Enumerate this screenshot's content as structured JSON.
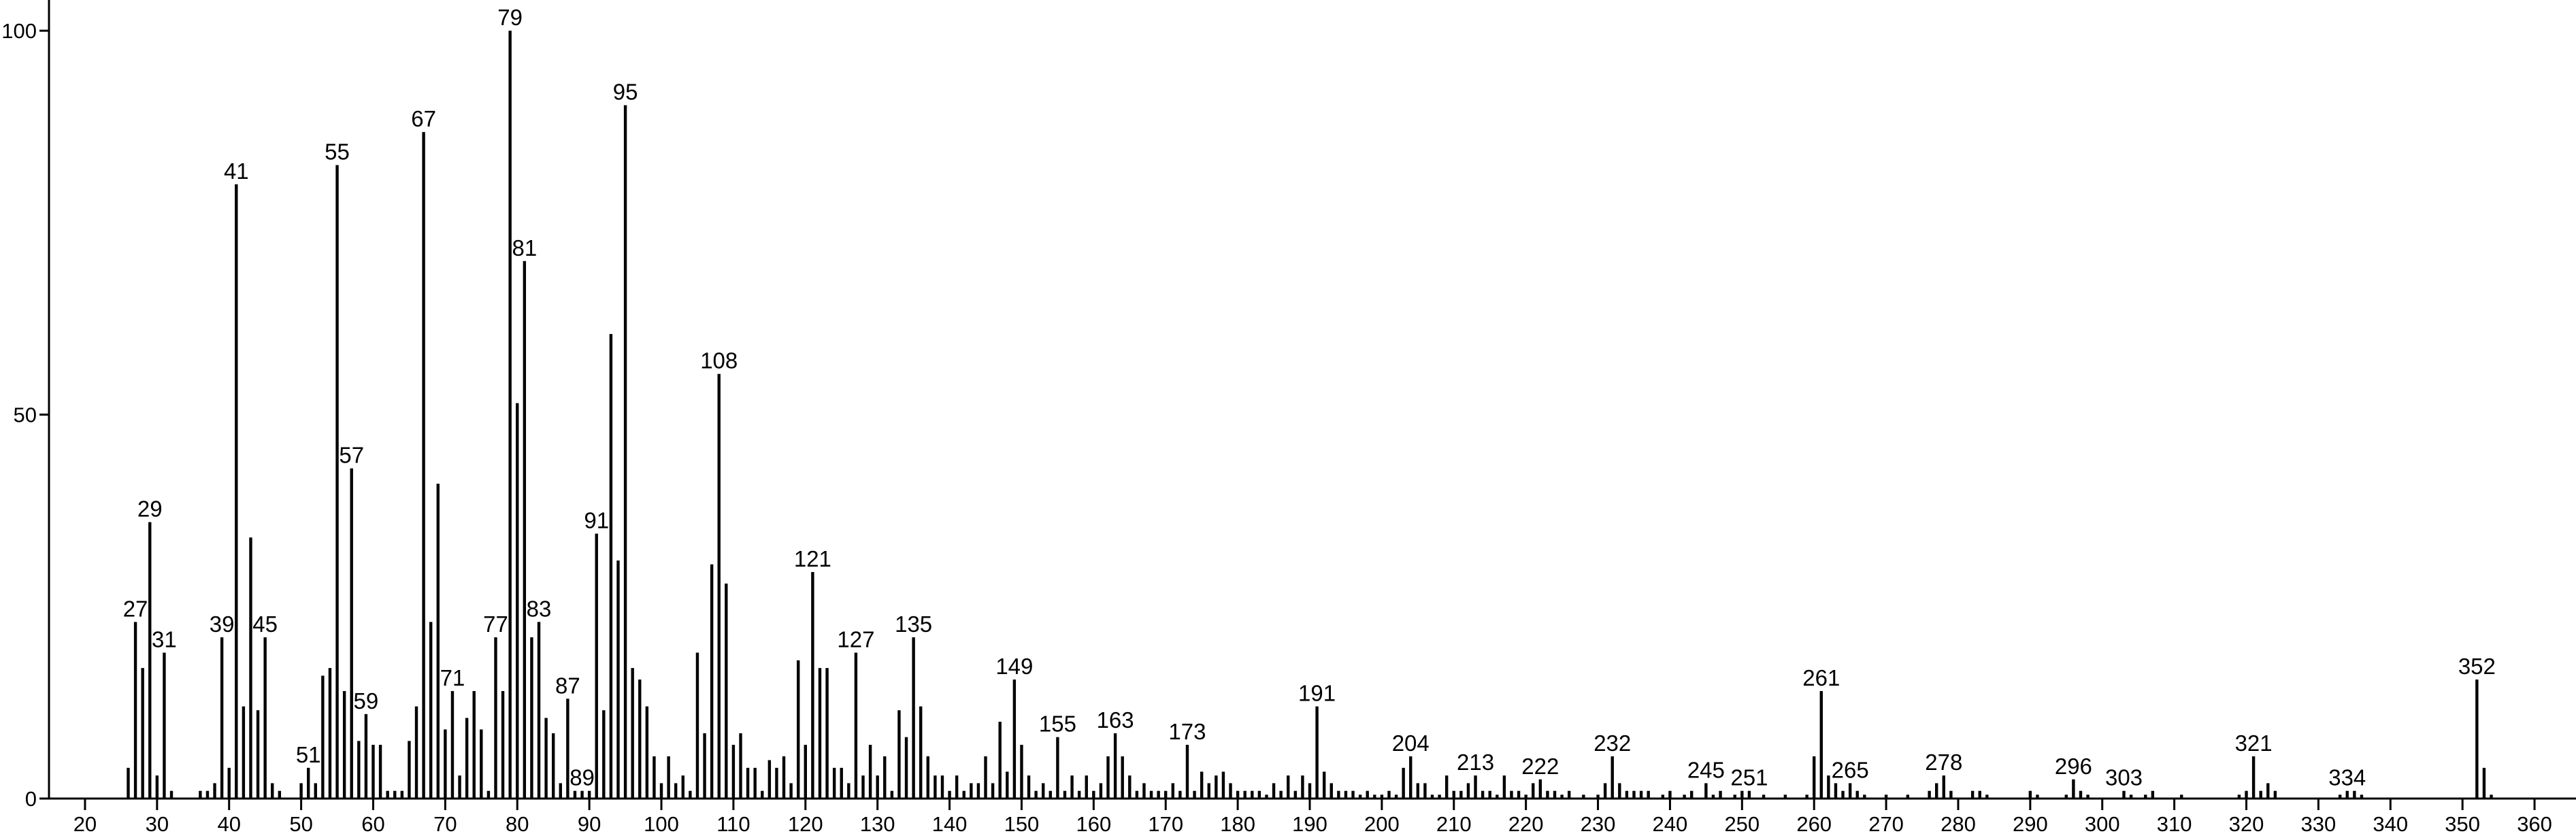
{
  "chart_data": {
    "type": "bar",
    "color": "#000000",
    "x": [
      26,
      27,
      28,
      29,
      30,
      31,
      32,
      36,
      37,
      38,
      39,
      40,
      41,
      42,
      43,
      44,
      45,
      46,
      47,
      50,
      51,
      52,
      53,
      54,
      55,
      56,
      57,
      58,
      59,
      60,
      61,
      62,
      63,
      64,
      65,
      66,
      67,
      68,
      69,
      70,
      71,
      72,
      73,
      74,
      75,
      76,
      77,
      78,
      79,
      80,
      81,
      82,
      83,
      84,
      85,
      86,
      87,
      88,
      89,
      90,
      91,
      92,
      93,
      94,
      95,
      96,
      97,
      98,
      99,
      100,
      101,
      102,
      103,
      104,
      105,
      106,
      107,
      108,
      109,
      110,
      111,
      112,
      113,
      114,
      115,
      116,
      117,
      118,
      119,
      120,
      121,
      122,
      123,
      124,
      125,
      126,
      127,
      128,
      129,
      130,
      131,
      132,
      133,
      134,
      135,
      136,
      137,
      138,
      139,
      140,
      141,
      142,
      143,
      144,
      145,
      146,
      147,
      148,
      149,
      150,
      151,
      152,
      153,
      154,
      155,
      156,
      157,
      158,
      159,
      160,
      161,
      162,
      163,
      164,
      165,
      166,
      167,
      168,
      169,
      170,
      171,
      172,
      173,
      174,
      175,
      176,
      177,
      178,
      179,
      180,
      181,
      182,
      183,
      184,
      185,
      186,
      187,
      188,
      189,
      190,
      191,
      192,
      193,
      194,
      195,
      196,
      197,
      198,
      199,
      200,
      201,
      202,
      203,
      204,
      205,
      206,
      207,
      208,
      209,
      210,
      211,
      212,
      213,
      214,
      215,
      216,
      217,
      218,
      219,
      220,
      221,
      222,
      223,
      224,
      225,
      226,
      228,
      230,
      231,
      232,
      233,
      234,
      235,
      236,
      237,
      239,
      240,
      242,
      243,
      245,
      246,
      247,
      249,
      250,
      251,
      253,
      256,
      259,
      260,
      261,
      262,
      263,
      264,
      265,
      266,
      267,
      270,
      273,
      276,
      277,
      278,
      279,
      282,
      283,
      284,
      290,
      291,
      295,
      296,
      297,
      298,
      303,
      304,
      306,
      307,
      311,
      319,
      320,
      321,
      322,
      323,
      324,
      333,
      334,
      335,
      336,
      352,
      353,
      354
    ],
    "values": [
      4,
      23,
      17,
      36,
      3,
      19,
      1,
      1,
      1,
      2,
      21,
      4,
      80,
      12,
      34,
      11.5,
      21,
      2,
      1,
      2,
      4,
      2,
      16,
      17,
      82.5,
      14,
      43,
      7.5,
      11,
      7,
      7,
      1,
      1,
      1,
      7.5,
      12,
      86.8,
      23,
      41,
      9,
      14,
      3,
      10.5,
      14,
      9,
      1,
      21,
      14,
      100,
      51.5,
      70,
      21,
      23,
      10.5,
      8.5,
      2,
      13,
      1,
      1,
      1,
      34.5,
      11.5,
      60.5,
      31,
      90.3,
      17,
      15.5,
      12,
      5.5,
      2,
      5.5,
      2,
      3,
      1,
      19,
      8.5,
      30.5,
      55.3,
      28,
      7,
      8.5,
      4,
      4,
      1,
      5,
      4,
      5.5,
      2,
      18,
      7,
      29.5,
      17,
      17,
      4,
      4,
      2,
      19,
      3,
      7,
      3,
      5.5,
      1,
      11.5,
      8,
      21,
      12,
      5.5,
      3,
      3,
      1,
      3,
      1,
      2,
      2,
      5.5,
      2,
      10,
      3.5,
      15.5,
      7,
      3,
      1,
      2,
      1,
      8,
      1,
      3,
      1,
      3,
      1,
      2,
      5.5,
      8.5,
      5.5,
      3,
      1,
      2,
      1,
      1,
      1,
      2,
      1,
      7,
      1,
      3.5,
      2,
      3,
      3.5,
      2,
      1,
      1,
      1,
      1,
      0.5,
      2,
      1,
      3,
      1,
      3,
      2,
      12,
      3.5,
      2,
      1,
      1,
      1,
      0.5,
      1,
      0.5,
      0.5,
      1,
      0.5,
      4,
      5.5,
      2,
      2,
      0.5,
      0.5,
      3,
      1,
      1,
      2,
      3,
      1,
      1,
      0.5,
      3,
      1,
      1,
      0.5,
      2,
      2.5,
      1,
      1,
      0.5,
      1,
      0.5,
      0.5,
      2,
      5.5,
      2,
      1,
      1,
      1,
      1,
      0.5,
      1,
      0.5,
      1,
      2,
      0.5,
      1,
      0.5,
      1,
      1,
      0.5,
      0.5,
      0.5,
      5.5,
      14,
      3,
      2,
      1,
      2,
      1,
      0.5,
      0.5,
      0.5,
      1,
      2,
      3,
      1,
      1,
      1,
      0.5,
      1,
      0.5,
      0.5,
      2.5,
      1,
      0.5,
      1,
      0.5,
      0.5,
      1,
      0.5,
      0.5,
      1,
      5.5,
      1,
      2,
      1,
      0.5,
      1,
      1,
      0.5,
      15.5,
      4,
      0.5
    ],
    "labeled": [
      false,
      true,
      false,
      true,
      false,
      true,
      false,
      false,
      false,
      false,
      true,
      false,
      true,
      false,
      false,
      false,
      true,
      false,
      false,
      false,
      true,
      false,
      false,
      false,
      true,
      false,
      true,
      false,
      true,
      false,
      false,
      false,
      false,
      false,
      false,
      false,
      true,
      false,
      false,
      false,
      true,
      false,
      false,
      false,
      false,
      false,
      true,
      false,
      true,
      false,
      true,
      false,
      true,
      false,
      false,
      false,
      true,
      false,
      true,
      false,
      true,
      false,
      false,
      false,
      true,
      false,
      false,
      false,
      false,
      false,
      false,
      false,
      false,
      false,
      false,
      false,
      false,
      true,
      false,
      false,
      false,
      false,
      false,
      false,
      false,
      false,
      false,
      false,
      false,
      false,
      true,
      false,
      false,
      false,
      false,
      false,
      true,
      false,
      false,
      false,
      false,
      false,
      false,
      false,
      true,
      false,
      false,
      false,
      false,
      false,
      false,
      false,
      false,
      false,
      false,
      false,
      false,
      false,
      true,
      false,
      false,
      false,
      false,
      false,
      true,
      false,
      false,
      false,
      false,
      false,
      false,
      false,
      true,
      false,
      false,
      false,
      false,
      false,
      false,
      false,
      false,
      false,
      true,
      false,
      false,
      false,
      false,
      false,
      false,
      false,
      false,
      false,
      false,
      false,
      false,
      false,
      false,
      false,
      false,
      false,
      true,
      false,
      false,
      false,
      false,
      false,
      false,
      false,
      false,
      false,
      false,
      false,
      false,
      true,
      false,
      false,
      false,
      false,
      false,
      false,
      false,
      false,
      true,
      false,
      false,
      false,
      false,
      false,
      false,
      false,
      false,
      true,
      false,
      false,
      false,
      false,
      false,
      false,
      false,
      true,
      false,
      false,
      false,
      false,
      false,
      false,
      false,
      false,
      false,
      true,
      false,
      false,
      false,
      false,
      true,
      false,
      false,
      false,
      false,
      true,
      false,
      false,
      false,
      true,
      false,
      false,
      false,
      false,
      false,
      false,
      true,
      false,
      false,
      false,
      false,
      false,
      false,
      false,
      true,
      false,
      false,
      true,
      false,
      false,
      false,
      false,
      false,
      false,
      true,
      false,
      false,
      false,
      false,
      true,
      false,
      false,
      true,
      false,
      false
    ],
    "xlim": [
      15,
      365
    ],
    "ylim": [
      0,
      104
    ],
    "xticks": [
      20,
      30,
      40,
      50,
      60,
      70,
      80,
      90,
      100,
      110,
      120,
      130,
      140,
      150,
      160,
      170,
      180,
      190,
      200,
      210,
      220,
      230,
      240,
      250,
      260,
      270,
      280,
      290,
      300,
      310,
      320,
      330,
      340,
      350,
      360
    ],
    "yticks": [
      0,
      50,
      100
    ]
  }
}
